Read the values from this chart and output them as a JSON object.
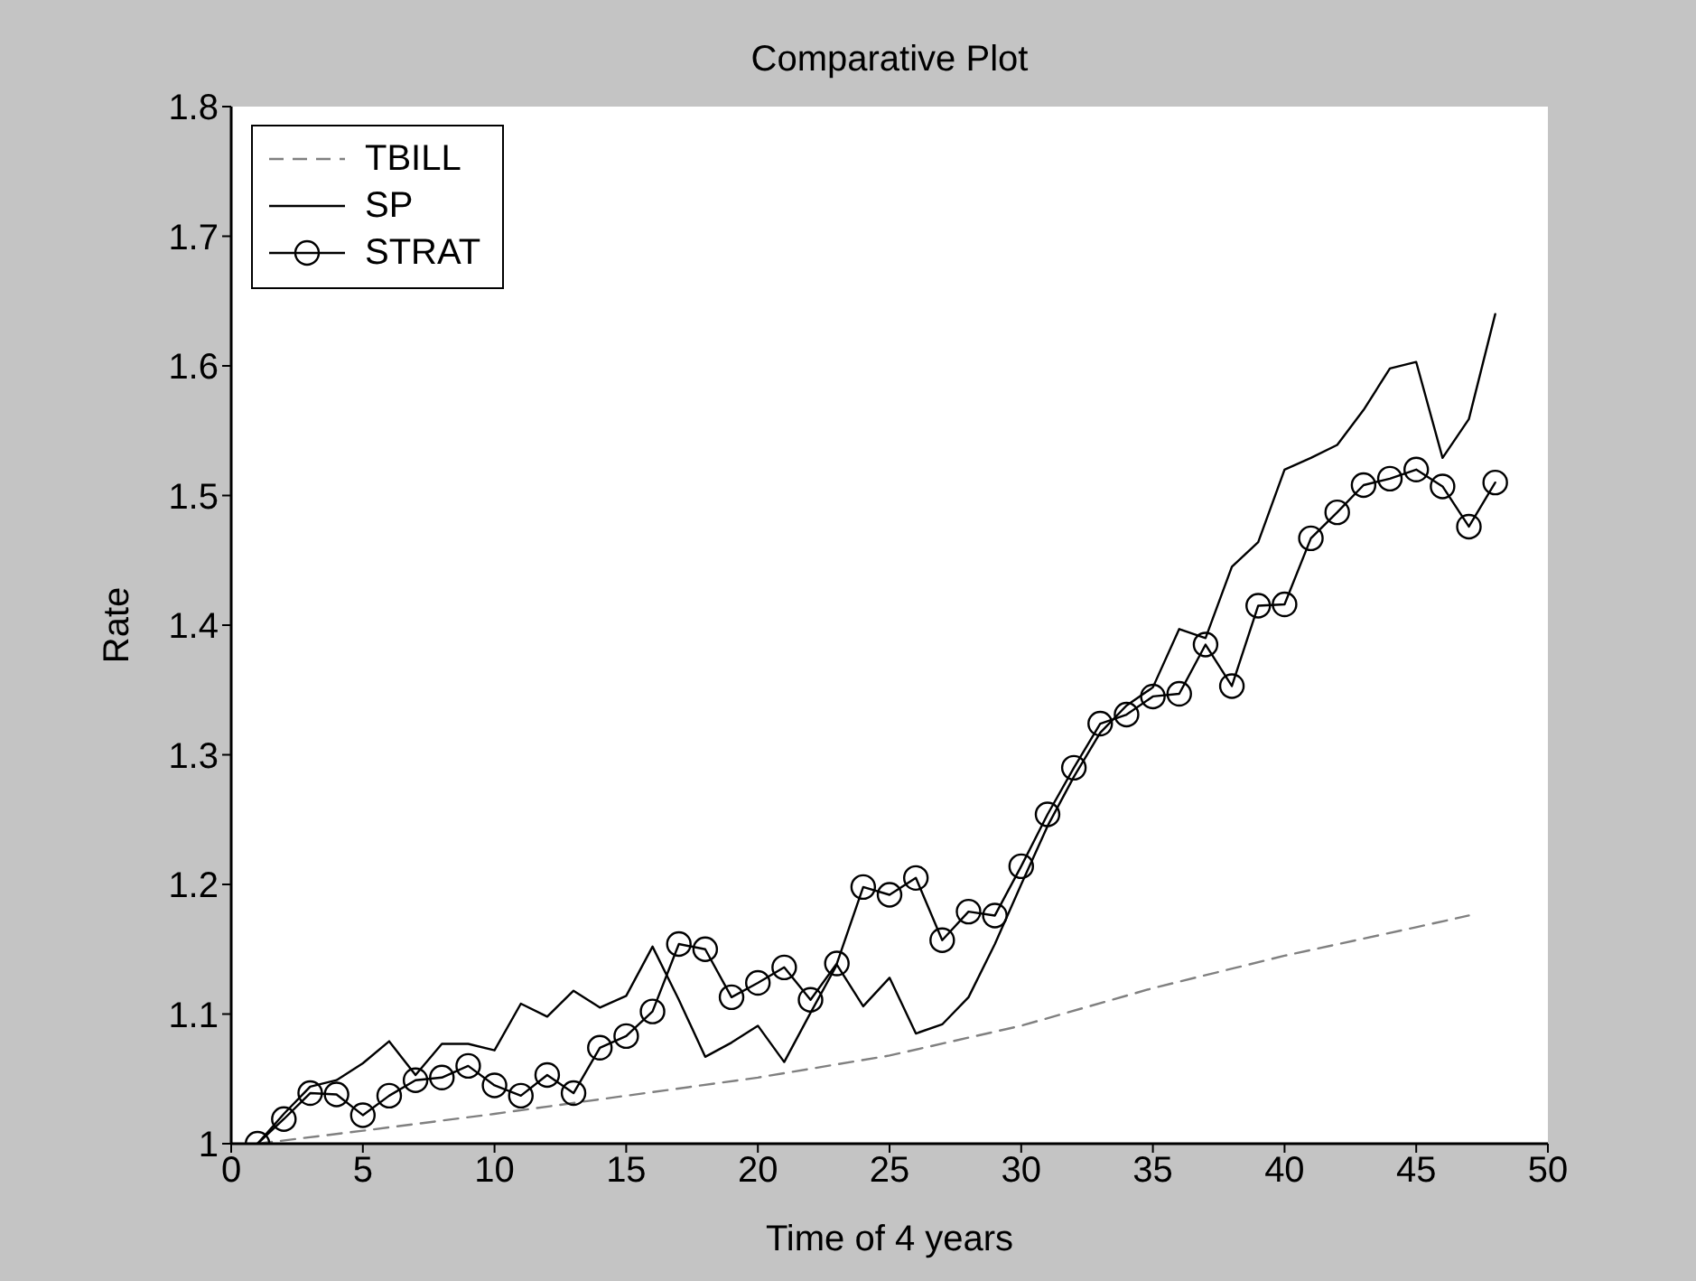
{
  "chart_data": {
    "type": "line",
    "title": "Comparative Plot",
    "xlabel": "Time of 4 years",
    "ylabel": "Rate",
    "xlim": [
      0,
      50
    ],
    "xticks": [
      0,
      5,
      10,
      15,
      20,
      25,
      30,
      35,
      40,
      45,
      50
    ],
    "ylim": [
      1,
      1.8
    ],
    "yticks": [
      1,
      1.1,
      1.2,
      1.3,
      1.4,
      1.5,
      1.6,
      1.7,
      1.8
    ],
    "legend": "top left",
    "x": [
      1,
      2,
      3,
      4,
      5,
      6,
      7,
      8,
      9,
      10,
      11,
      12,
      13,
      14,
      15,
      16,
      17,
      18,
      19,
      20,
      21,
      22,
      23,
      24,
      25,
      26,
      27,
      28,
      29,
      30,
      31,
      32,
      33,
      34,
      35,
      36,
      37,
      38,
      39,
      40,
      41,
      42,
      43,
      44,
      45,
      46,
      47,
      48
    ],
    "series": [
      {
        "name": "TBILL",
        "color": "#808080",
        "line_style": "dashed",
        "x": [
          1,
          5,
          10,
          15,
          20,
          25,
          30,
          35,
          40,
          45,
          47
        ],
        "values": [
          1.0,
          1.01,
          1.023,
          1.037,
          1.051,
          1.068,
          1.091,
          1.12,
          1.145,
          1.167,
          1.176
        ]
      },
      {
        "name": "SP",
        "color": "#000000",
        "line_style": "solid",
        "values": [
          1.0,
          1.023,
          1.044,
          1.049,
          1.062,
          1.079,
          1.053,
          1.077,
          1.077,
          1.072,
          1.108,
          1.098,
          1.118,
          1.105,
          1.114,
          1.152,
          1.111,
          1.067,
          1.078,
          1.091,
          1.063,
          1.101,
          1.138,
          1.106,
          1.128,
          1.085,
          1.092,
          1.113,
          1.154,
          1.2,
          1.245,
          1.283,
          1.317,
          1.338,
          1.352,
          1.397,
          1.39,
          1.445,
          1.464,
          1.52,
          1.529,
          1.539,
          1.566,
          1.598,
          1.603,
          1.529,
          1.559,
          1.64
        ]
      },
      {
        "name": "STRAT",
        "color": "#000000",
        "line_style": "solid",
        "marker": "circle",
        "values": [
          1.0,
          1.019,
          1.039,
          1.038,
          1.022,
          1.037,
          1.049,
          1.051,
          1.06,
          1.045,
          1.037,
          1.053,
          1.039,
          1.074,
          1.083,
          1.102,
          1.154,
          1.15,
          1.113,
          1.124,
          1.136,
          1.111,
          1.139,
          1.198,
          1.192,
          1.205,
          1.157,
          1.179,
          1.176,
          1.214,
          1.254,
          1.29,
          1.324,
          1.331,
          1.345,
          1.347,
          1.385,
          1.353,
          1.415,
          1.416,
          1.467,
          1.487,
          1.508,
          1.513,
          1.52,
          1.507,
          1.476,
          1.51
        ]
      }
    ]
  }
}
